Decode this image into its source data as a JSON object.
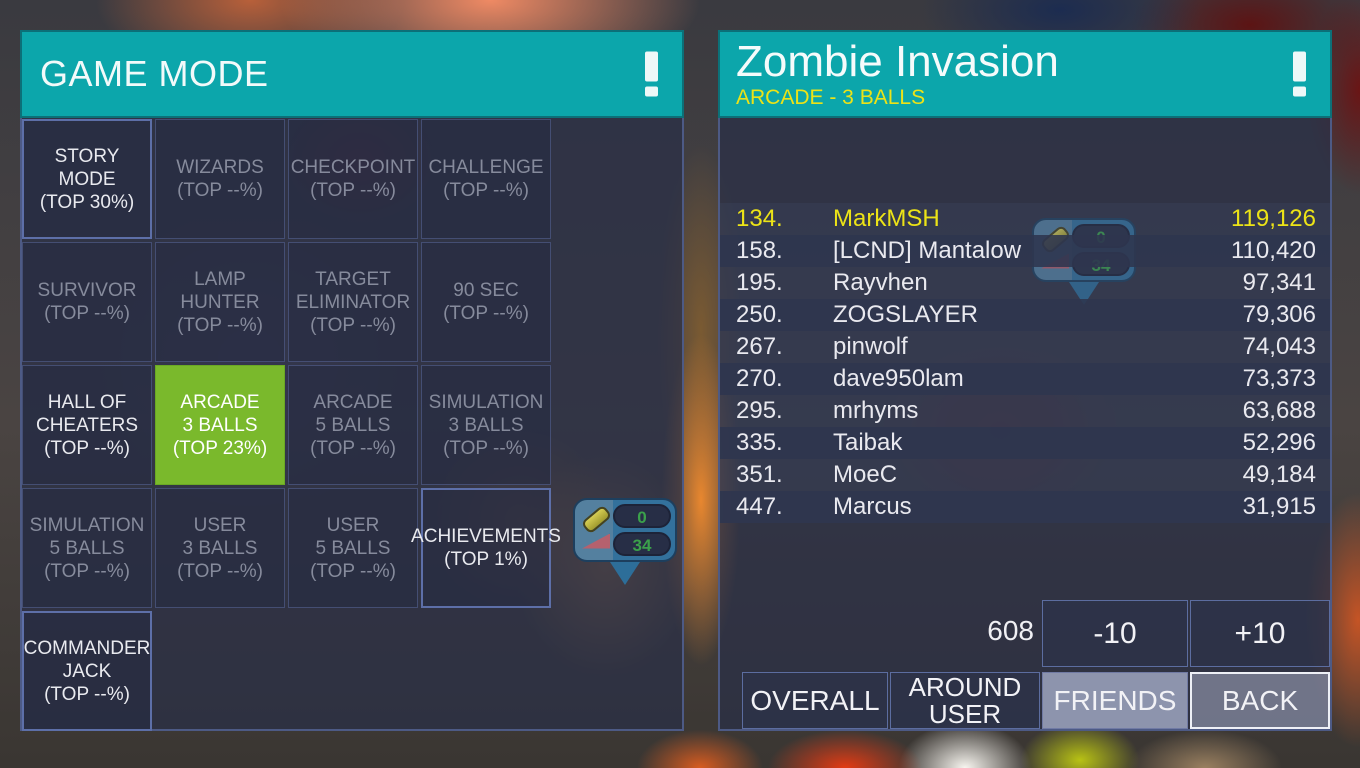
{
  "colors": {
    "teal": "#0ca6ab",
    "green": "#7ab92c",
    "yellow": "#ece317"
  },
  "left_panel": {
    "title": "GAME MODE",
    "tiles": [
      {
        "text": "STORY MODE\n(TOP 30%)",
        "state": "available"
      },
      {
        "text": "WIZARDS\n(TOP --%)",
        "state": "locked"
      },
      {
        "text": "CHECKPOINT\n(TOP --%)",
        "state": "locked"
      },
      {
        "text": "CHALLENGE\n(TOP --%)",
        "state": "locked"
      },
      {
        "text": "SURVIVOR\n(TOP --%)",
        "state": "locked"
      },
      {
        "text": "LAMP\nHUNTER\n(TOP --%)",
        "state": "locked"
      },
      {
        "text": "TARGET\nELIMINATOR\n(TOP --%)",
        "state": "locked"
      },
      {
        "text": "90 SEC\n(TOP --%)",
        "state": "locked"
      },
      {
        "text": "HALL OF\nCHEATERS\n(TOP --%)",
        "state": "enabled"
      },
      {
        "text": "ARCADE\n3 BALLS\n(TOP 23%)",
        "state": "selected"
      },
      {
        "text": "ARCADE\n5 BALLS\n(TOP --%)",
        "state": "locked"
      },
      {
        "text": "SIMULATION\n3 BALLS\n(TOP --%)",
        "state": "locked"
      },
      {
        "text": "SIMULATION\n5 BALLS\n(TOP --%)",
        "state": "locked"
      },
      {
        "text": "USER\n3 BALLS\n(TOP --%)",
        "state": "locked"
      },
      {
        "text": "USER\n5 BALLS\n(TOP --%)",
        "state": "locked"
      },
      {
        "text": "ACHIEVEMENTS\n(TOP 1%)",
        "state": "available"
      },
      {
        "text": "COMMANDER\nJACK\n(TOP --%)",
        "state": "available"
      }
    ]
  },
  "stats_badge": {
    "bullet_value": "0",
    "flipper_value": "34"
  },
  "right_panel": {
    "title": "Zombie Invasion",
    "subtitle": "ARCADE - 3 BALLS",
    "rows": [
      {
        "rank": "134.",
        "name": "MarkMSH",
        "score": "119,126",
        "highlight": true
      },
      {
        "rank": "158.",
        "name": "[LCND] Mantalow",
        "score": "110,420",
        "highlight": false
      },
      {
        "rank": "195.",
        "name": "Rayvhen",
        "score": "97,341",
        "highlight": false
      },
      {
        "rank": "250.",
        "name": "ZOGSLAYER",
        "score": "79,306",
        "highlight": false
      },
      {
        "rank": "267.",
        "name": "pinwolf",
        "score": "74,043",
        "highlight": false
      },
      {
        "rank": "270.",
        "name": "dave950lam",
        "score": "73,373",
        "highlight": false
      },
      {
        "rank": "295.",
        "name": "mrhyms",
        "score": "63,688",
        "highlight": false
      },
      {
        "rank": "335.",
        "name": "Taibak",
        "score": "52,296",
        "highlight": false
      },
      {
        "rank": "351.",
        "name": "MoeC",
        "score": "49,184",
        "highlight": false
      },
      {
        "rank": "447.",
        "name": "Marcus",
        "score": "31,915",
        "highlight": false
      }
    ],
    "page_number": "608",
    "buttons": {
      "minus": "-10",
      "plus": "+10",
      "overall": "OVERALL",
      "around_user": "AROUND\nUSER",
      "friends": "FRIENDS",
      "back": "BACK"
    }
  }
}
